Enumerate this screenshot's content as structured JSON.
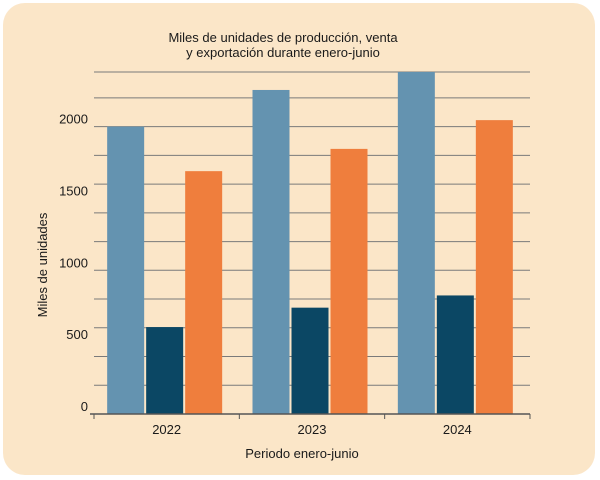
{
  "chart_data": {
    "type": "bar",
    "title_lines": [
      "Miles de unidades de producción, venta",
      "y exportación durante enero-junio"
    ],
    "xlabel": "Periodo enero-junio",
    "ylabel": "Miles de unidades",
    "categories": [
      "2022",
      "2023",
      "2024"
    ],
    "series": [
      {
        "values": [
          2000,
          2255,
          2380
        ],
        "color": "#6493b0"
      },
      {
        "values": [
          605,
          740,
          825
        ],
        "color": "#0b4764"
      },
      {
        "values": [
          1690,
          1845,
          2045
        ],
        "color": "#ef7e3d"
      }
    ],
    "ylim": [
      0,
      2380
    ],
    "yticks": [
      0,
      500,
      1000,
      1500,
      2000
    ],
    "grid": true,
    "background": "#fbe6c8",
    "gridline_color": "#7a7a7a"
  }
}
